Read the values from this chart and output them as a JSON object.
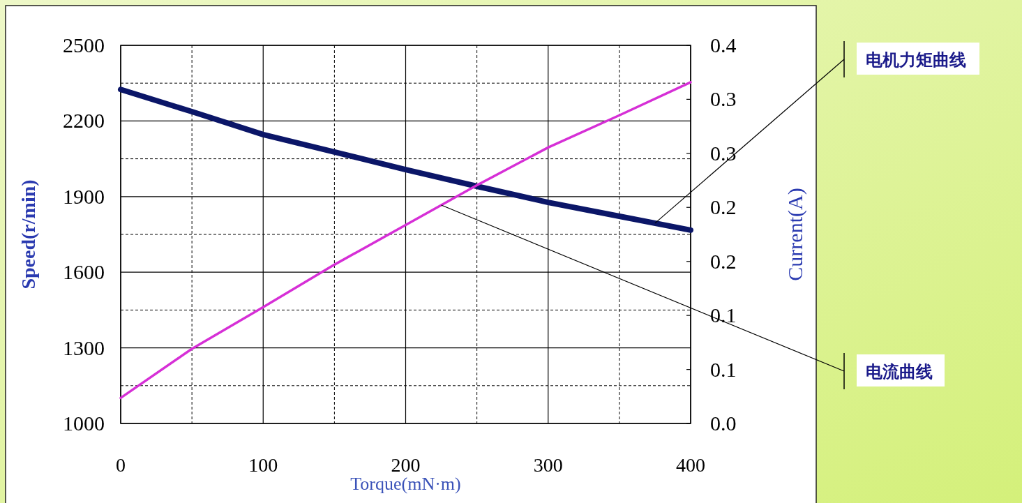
{
  "chart_data": {
    "type": "line",
    "xlabel": "Torque(mN·m)",
    "ylabel": "Speed(r/min)",
    "y2label": "Current(A)",
    "x": [
      0,
      50,
      100,
      150,
      200,
      250,
      300,
      350,
      400
    ],
    "series": [
      {
        "name": "电机力矩曲线",
        "color": "#0b1668",
        "values": [
          2325,
          2237,
          2146,
          2077,
          2007,
          1941,
          1877,
          1822,
          1767
        ]
      },
      {
        "name": "电流曲线",
        "color": "#d62fd6",
        "axis": "y2",
        "values": [
          0.027,
          0.079,
          0.123,
          0.168,
          0.21,
          0.252,
          0.292,
          0.326,
          0.361
        ]
      }
    ],
    "xlim": [
      0,
      400
    ],
    "xticks": [
      0,
      100,
      200,
      300,
      400
    ],
    "ylim": [
      1000,
      2500
    ],
    "yticks": [
      1000,
      1300,
      1600,
      1900,
      2200,
      2500
    ],
    "y2lim": [
      0,
      0.4
    ],
    "y2ticks": [
      {
        "value": 0,
        "label": "0.0"
      },
      {
        "value": 0.0571,
        "label": "0.1"
      },
      {
        "value": 0.1143,
        "label": "0.1"
      },
      {
        "value": 0.1714,
        "label": "0.2"
      },
      {
        "value": 0.2286,
        "label": "0.2"
      },
      {
        "value": 0.2857,
        "label": "0.3"
      },
      {
        "value": 0.3429,
        "label": "0.3"
      },
      {
        "value": 0.4,
        "label": "0.4"
      }
    ],
    "grid": true
  }
}
